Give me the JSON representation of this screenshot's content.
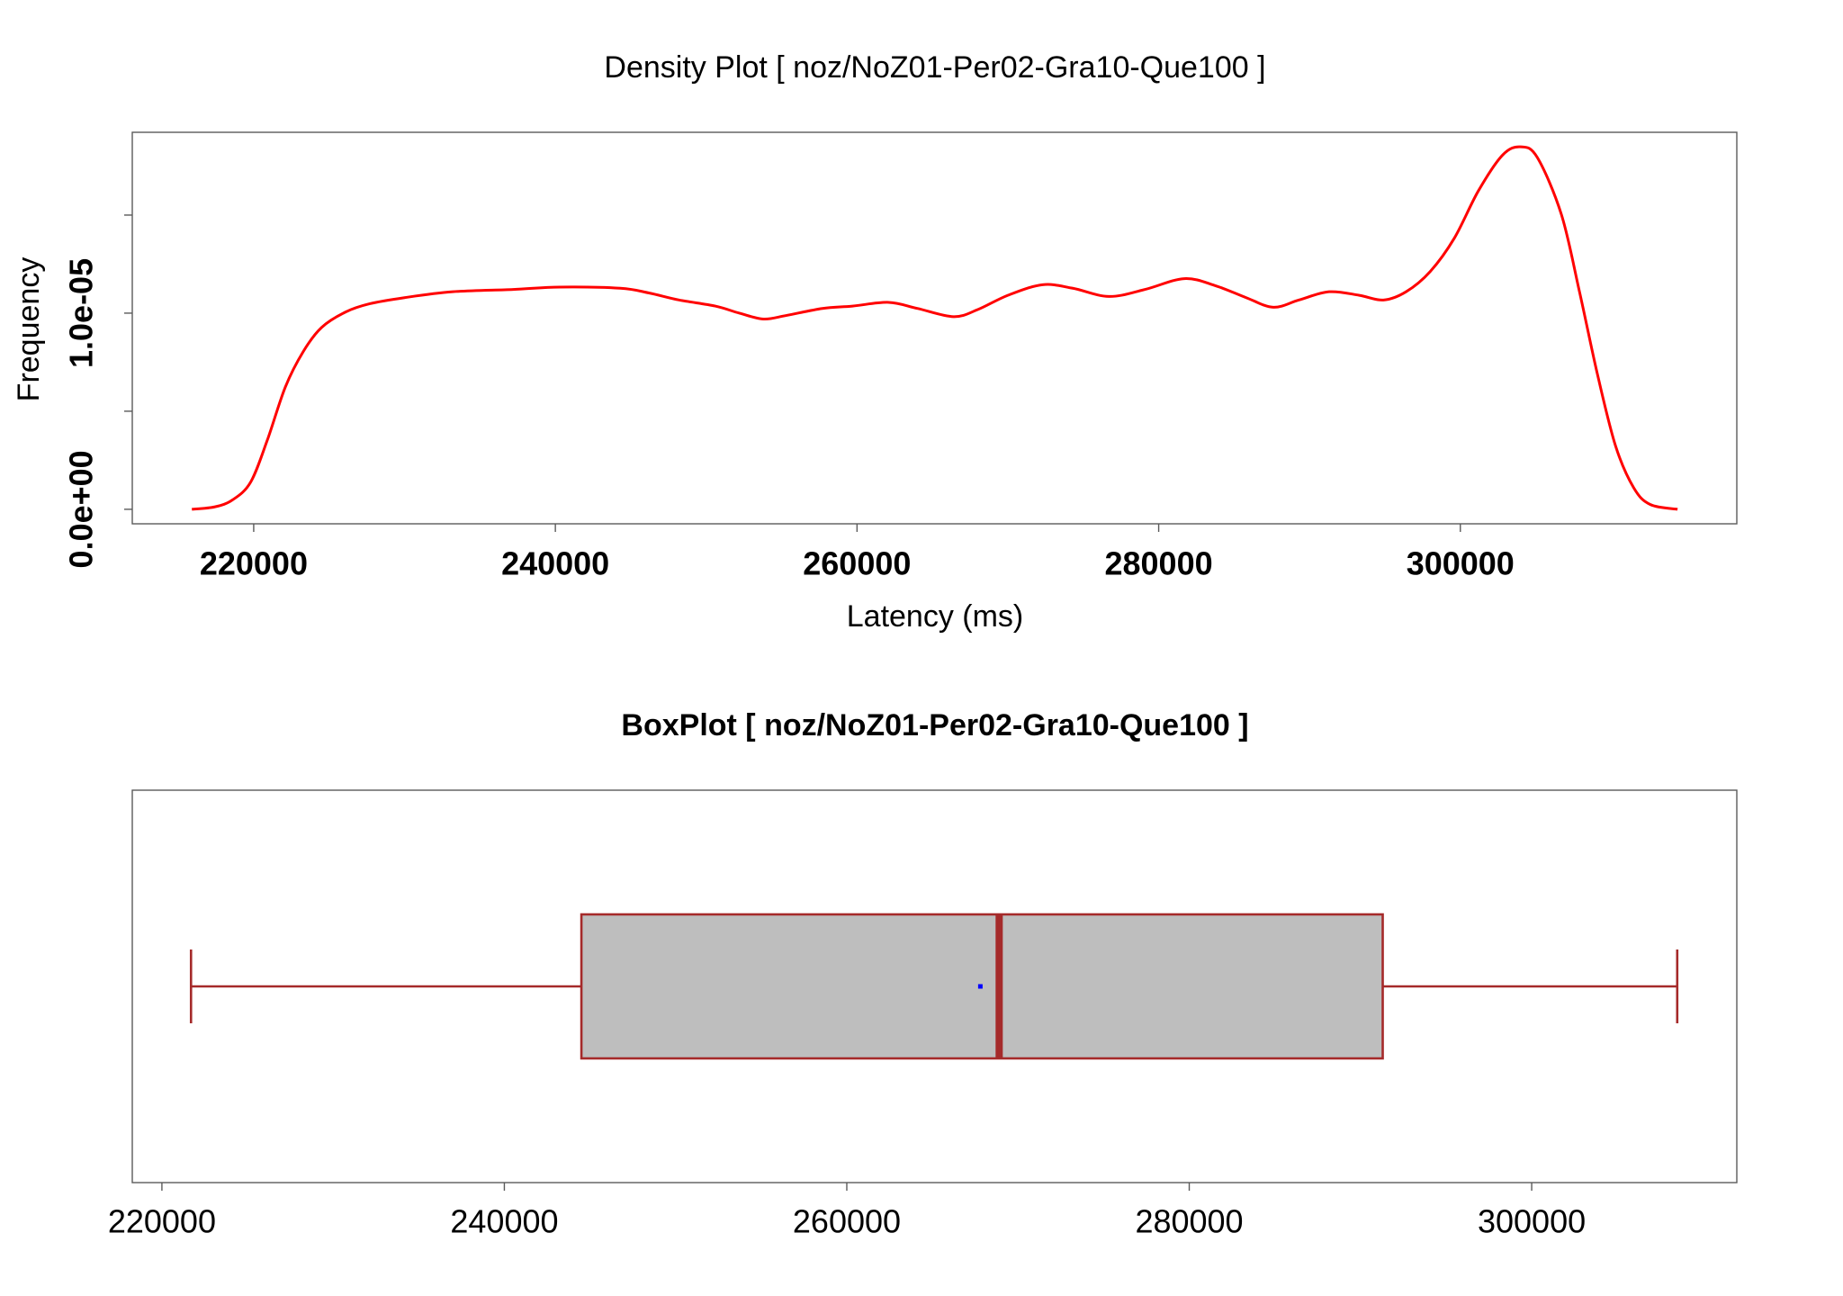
{
  "chart_data": [
    {
      "type": "line",
      "title": "Density Plot [ noz/NoZ01-Per02-Gra10-Que100 ]",
      "xlabel": "Latency (ms)",
      "ylabel": "Frequency",
      "xlim": [
        211950,
        318330
      ],
      "ylim": [
        -7.4e-07,
        1.922e-05
      ],
      "x_ticks": [
        {
          "value": 220000,
          "label": "220000"
        },
        {
          "value": 240000,
          "label": "240000"
        },
        {
          "value": 260000,
          "label": "260000"
        },
        {
          "value": 280000,
          "label": "280000"
        },
        {
          "value": 300000,
          "label": "300000"
        }
      ],
      "y_ticks": [
        0,
        5e-06,
        1e-05,
        1.5e-05
      ],
      "y_tick_labels": [
        {
          "value": 0,
          "label": "0.0e+00"
        },
        {
          "value": 1e-05,
          "label": "1.0e-05"
        }
      ],
      "grid": false,
      "legend": "none",
      "colors": {
        "line": "#ff0000"
      },
      "series": [
        {
          "x": [
            215900,
            217400,
            218600,
            219800,
            220900,
            222100,
            223300,
            224500,
            226100,
            227700,
            230000,
            233200,
            237200,
            240300,
            244300,
            246200,
            248200,
            250600,
            252200,
            253800,
            255300,
            257700,
            259700,
            262100,
            264000,
            266400,
            268000,
            270000,
            272300,
            274300,
            276700,
            279100,
            281700,
            283800,
            285800,
            287600,
            289300,
            291300,
            293300,
            294900,
            296400,
            298000,
            299600,
            301200,
            302800,
            304000,
            305100,
            306700,
            307900,
            309100,
            310300,
            311500,
            312600,
            314400
          ],
          "y": [
            0,
            1.2e-07,
            4.8e-07,
            1.39e-06,
            3.52e-06,
            6.24e-06,
            8.06e-06,
            9.27e-06,
            1.006e-05,
            1.048e-05,
            1.079e-05,
            1.109e-05,
            1.121e-05,
            1.133e-05,
            1.127e-05,
            1.103e-05,
            1.067e-05,
            1.036e-05,
            1e-05,
            9.7e-06,
            9.88e-06,
            1.024e-05,
            1.036e-05,
            1.055e-05,
            1.024e-05,
            9.82e-06,
            1.018e-05,
            1.091e-05,
            1.145e-05,
            1.127e-05,
            1.085e-05,
            1.121e-05,
            1.176e-05,
            1.139e-05,
            1.079e-05,
            1.03e-05,
            1.067e-05,
            1.109e-05,
            1.091e-05,
            1.067e-05,
            1.109e-05,
            1.212e-05,
            1.382e-05,
            1.624e-05,
            1.806e-05,
            1.848e-05,
            1.794e-05,
            1.503e-05,
            1.109e-05,
            6.85e-06,
            3.21e-06,
            1.09e-06,
            2.4e-07,
            0
          ]
        }
      ]
    },
    {
      "type": "box",
      "orientation": "horizontal",
      "title": "BoxPlot [ noz/NoZ01-Per02-Gra10-Que100 ]",
      "xlim": [
        218270,
        311980
      ],
      "x_ticks": [
        {
          "value": 220000,
          "label": "220000"
        },
        {
          "value": 240000,
          "label": "240000"
        },
        {
          "value": 260000,
          "label": "260000"
        },
        {
          "value": 280000,
          "label": "280000"
        },
        {
          "value": 300000,
          "label": "300000"
        }
      ],
      "grid": false,
      "legend": "none",
      "box": {
        "whisker_low": 221700,
        "q1": 244500,
        "median": 268900,
        "q3": 291300,
        "whisker_high": 308500,
        "mean": 267800
      },
      "colors": {
        "fill": "#bebebe",
        "border": "#a52a2a",
        "median": "#a52a2a",
        "mean": "#0000ff"
      }
    }
  ]
}
